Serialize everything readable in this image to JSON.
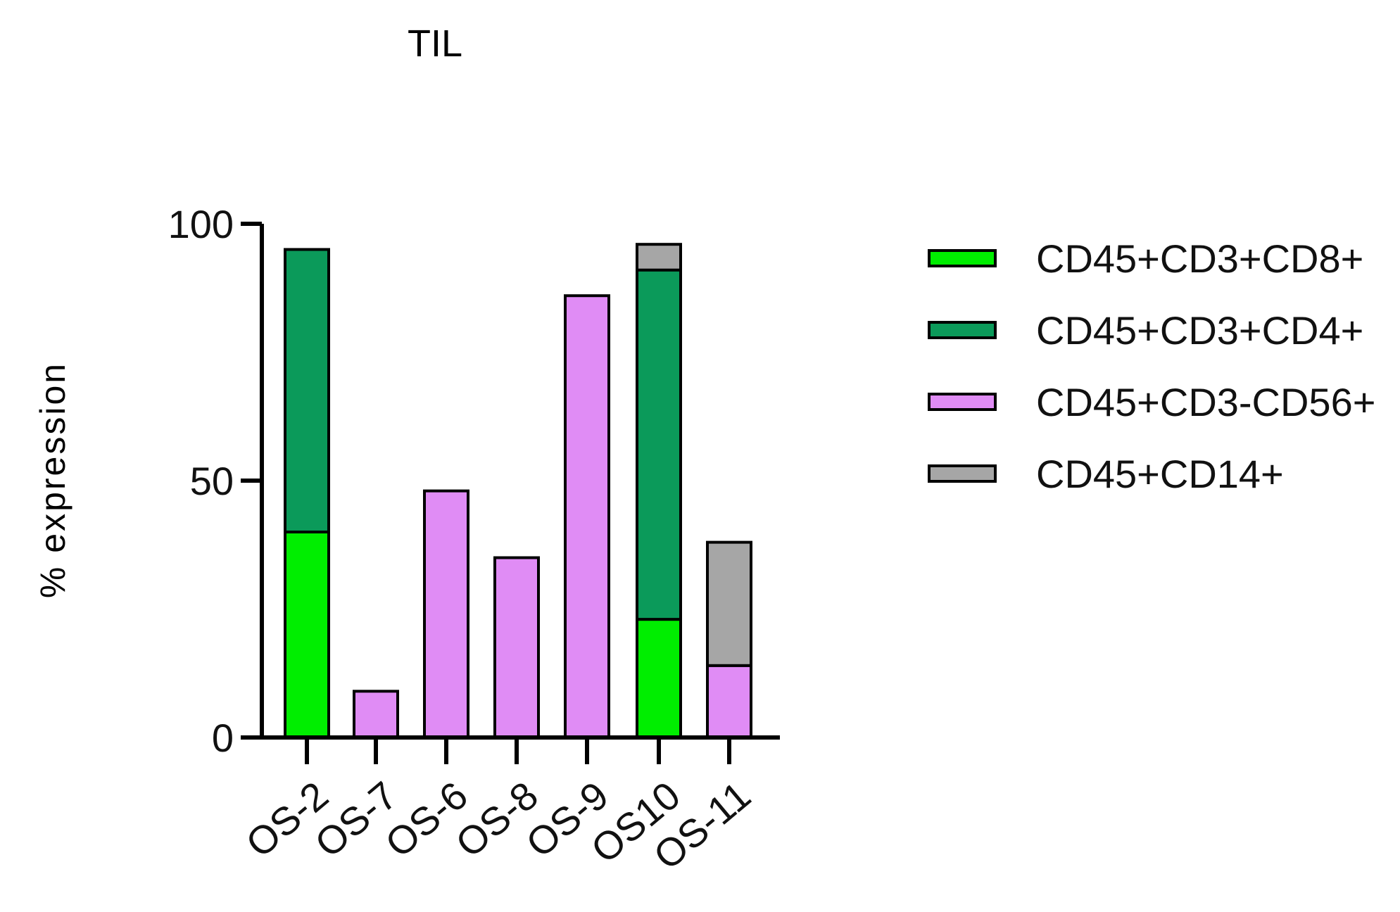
{
  "chart_data": {
    "type": "bar",
    "stacked": true,
    "title": "TIL",
    "xlabel": "",
    "ylabel": "% expression",
    "ylim": [
      0,
      100
    ],
    "yticks": [
      0,
      50,
      100
    ],
    "categories": [
      "OS-2",
      "OS-7",
      "OS-6",
      "OS-8",
      "OS-9",
      "OS10",
      "OS-11"
    ],
    "series": [
      {
        "name": "CD45+CD3+CD8+",
        "color": "#00ee00",
        "values": [
          40,
          0,
          0,
          0,
          0,
          23,
          0
        ]
      },
      {
        "name": "CD45+CD3+CD4+",
        "color": "#0b9a5a",
        "values": [
          55,
          0,
          0,
          0,
          0,
          68,
          0
        ]
      },
      {
        "name": "CD45+CD3-CD56+",
        "color": "#e08cf5",
        "values": [
          0,
          9,
          48,
          35,
          86,
          0,
          14
        ]
      },
      {
        "name": "CD45+CD14+",
        "color": "#a6a6a6",
        "values": [
          0,
          0,
          0,
          0,
          0,
          5,
          24
        ]
      }
    ],
    "legend_position": "right"
  }
}
